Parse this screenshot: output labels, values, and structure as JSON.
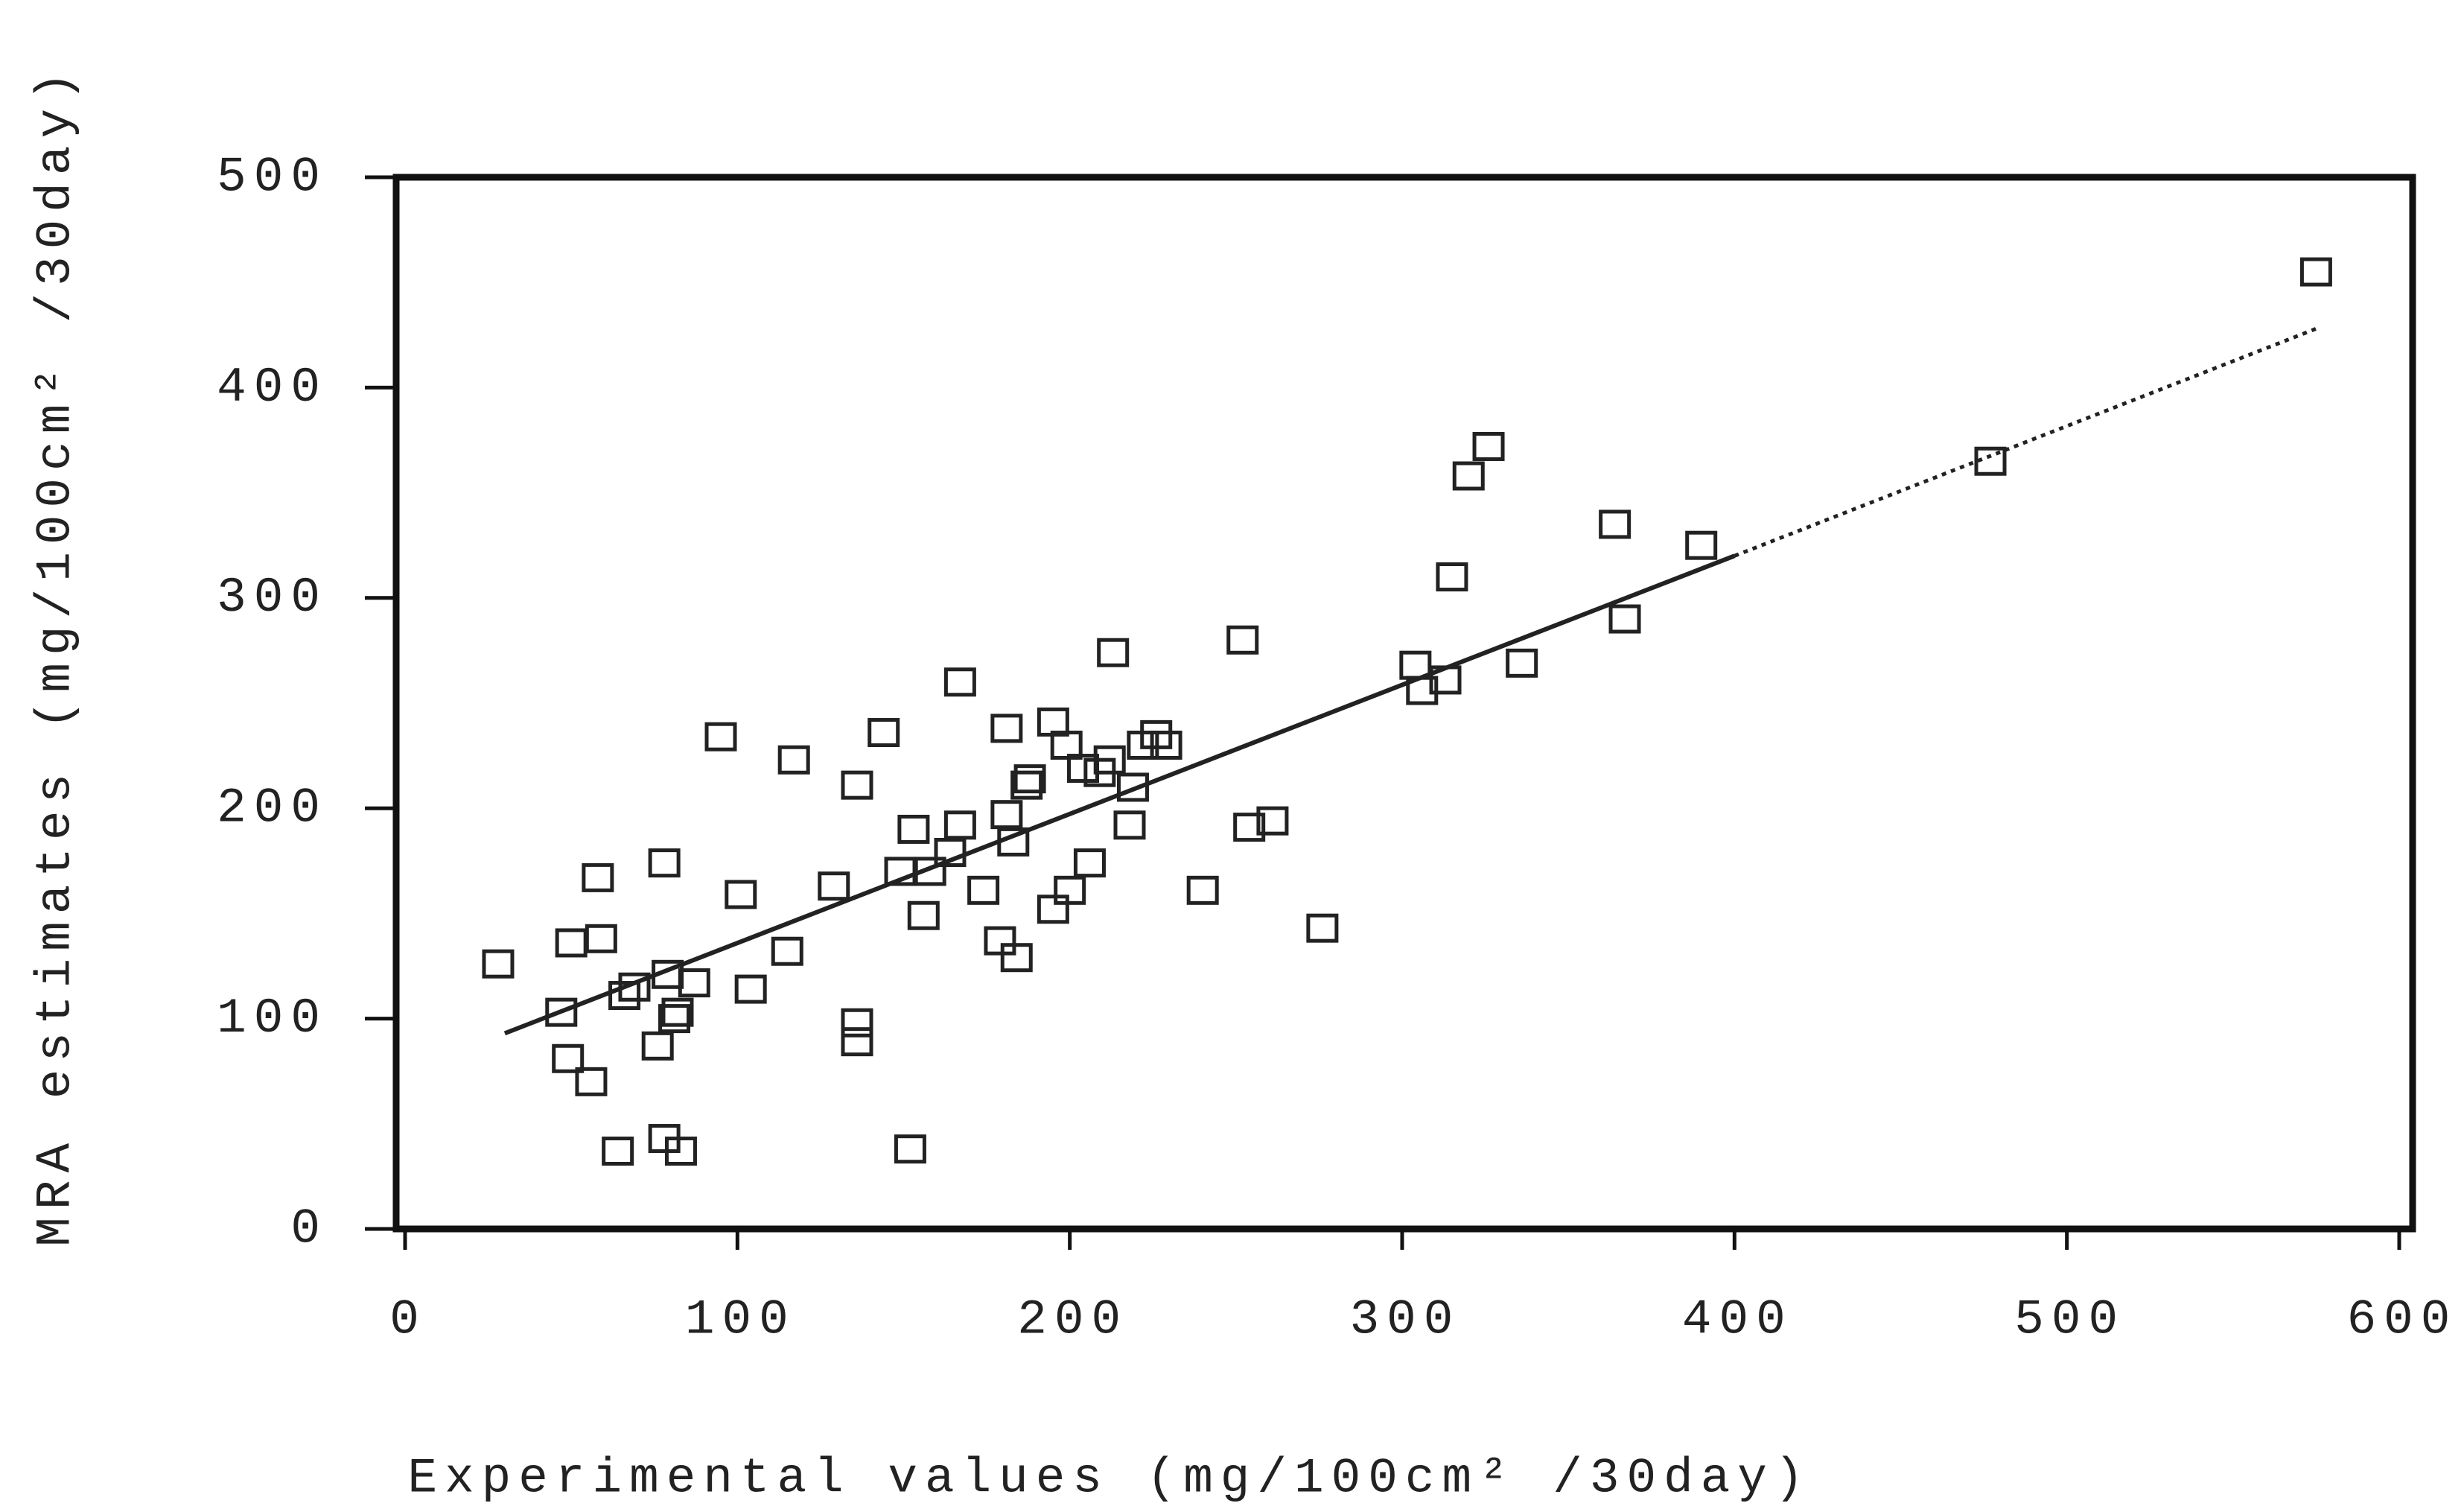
{
  "chart_data": {
    "type": "scatter",
    "x_label": "Experimental values (mg/100cm² /30day)",
    "y_label": "MRA estimates (mg/100cm² /30day)",
    "xlim": [
      0,
      600
    ],
    "ylim": [
      0,
      500
    ],
    "xticks": [
      0,
      100,
      200,
      300,
      400,
      500,
      600
    ],
    "yticks": [
      0,
      100,
      200,
      300,
      400,
      500
    ],
    "color": "#222222",
    "series": [
      {
        "x": [
          28,
          47,
          50,
          49,
          56,
          58,
          59,
          64,
          66,
          69,
          76,
          78,
          78,
          79,
          81,
          82,
          83,
          87,
          95,
          101,
          104,
          115,
          117,
          129,
          136,
          136,
          136,
          144,
          149,
          153,
          152,
          156,
          158,
          164,
          167,
          167,
          174,
          179,
          181,
          181,
          183,
          184,
          187,
          188,
          195,
          195,
          199,
          200,
          204,
          206,
          209,
          212,
          213,
          218,
          219,
          222,
          226,
          229,
          240,
          252,
          254,
          261,
          276,
          304,
          306,
          313,
          315,
          320,
          326,
          336,
          364,
          367,
          390,
          477,
          575
        ],
        "values": [
          126,
          103,
          136,
          81,
          70,
          167,
          138,
          37,
          111,
          115,
          87,
          174,
          43,
          121,
          100,
          103,
          37,
          117,
          234,
          159,
          114,
          132,
          223,
          163,
          211,
          98,
          89,
          236,
          170,
          190,
          38,
          149,
          170,
          179,
          192,
          260,
          161,
          137,
          197,
          238,
          184,
          129,
          211,
          214,
          241,
          152,
          230,
          161,
          219,
          174,
          217,
          223,
          274,
          192,
          210,
          230,
          235,
          230,
          161,
          280,
          191,
          194,
          143,
          268,
          256,
          261,
          310,
          358,
          372,
          269,
          335,
          290,
          325,
          365,
          455
        ]
      },
      {
        "type": "line",
        "style": "solid",
        "x": [
          30,
          400
        ],
        "values": [
          93,
          320
        ]
      },
      {
        "type": "line",
        "style": "dotted",
        "x": [
          400,
          575
        ],
        "values": [
          320,
          428
        ]
      }
    ]
  }
}
